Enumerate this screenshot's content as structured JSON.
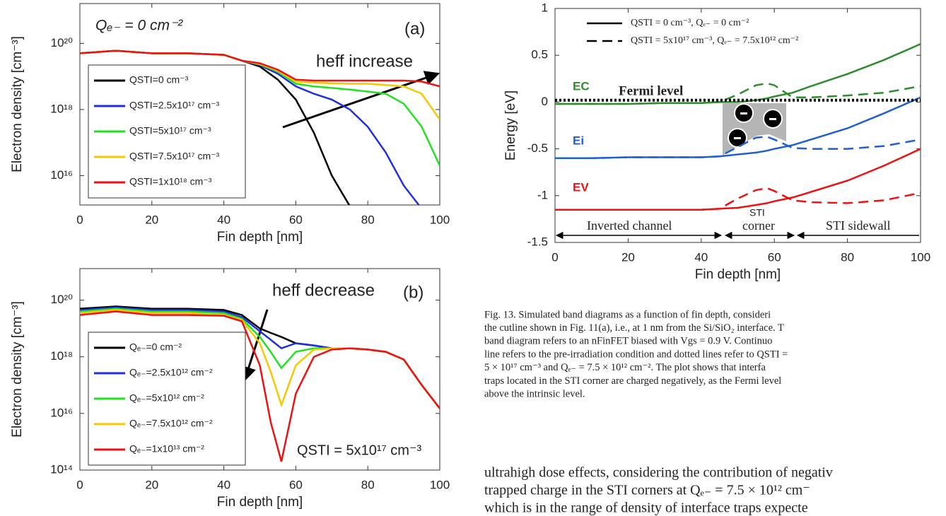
{
  "chart_data": [
    {
      "type": "line",
      "log_y": true,
      "annotations": [
        "Qₑ₋ = 0 cm⁻²",
        "(a)",
        "heff increase"
      ],
      "xlabel": "Fin depth [nm]",
      "ylabel": "Electron density [cm⁻³]",
      "xlim": [
        0,
        100
      ],
      "xticks": [
        0,
        20,
        40,
        60,
        80,
        100
      ],
      "ylim": [
        1300000000000000.0,
        1.6e+21
      ],
      "yticks": [
        {
          "value": 1e+16,
          "label": "10¹⁶"
        },
        {
          "value": 1e+18,
          "label": "10¹⁸"
        },
        {
          "value": 1e+20,
          "label": "10²⁰"
        }
      ],
      "x": [
        0,
        10,
        20,
        30,
        40,
        45,
        50,
        55,
        60,
        65,
        70,
        75,
        80,
        85,
        90,
        95,
        100
      ],
      "series": [
        {
          "name": "QSTI=0 cm⁻³",
          "color": "#000000",
          "values": [
            5e+19,
            6e+19,
            5e+19,
            5e+19,
            4.5e+19,
            3e+19,
            2e+19,
            8e+18,
            2e+18,
            2e+17,
            1e+16,
            1200000000000000.0,
            null,
            null,
            null,
            null,
            null
          ]
        },
        {
          "name": "QSTI=2.5x10¹⁷ cm⁻³",
          "color": "#1f2fe0",
          "values": [
            5e+19,
            6e+19,
            5e+19,
            5e+19,
            4.5e+19,
            3e+19,
            2.2e+19,
            1.2e+19,
            5e+18,
            3e+18,
            2e+18,
            1e+18,
            3e+17,
            5e+16,
            5000000000000000.0,
            1000000000000000.0,
            null
          ]
        },
        {
          "name": "QSTI=5x10¹⁷ cm⁻³",
          "color": "#22e022",
          "values": [
            5e+19,
            6e+19,
            5e+19,
            5e+19,
            4.5e+19,
            3e+19,
            2.3e+19,
            1.4e+19,
            6e+18,
            5e+18,
            4.5e+18,
            4e+18,
            3.5e+18,
            3e+18,
            1.5e+18,
            3e+17,
            2e+16
          ]
        },
        {
          "name": "QSTI=7.5x10¹⁷ cm⁻³",
          "color": "#f5c800",
          "values": [
            5e+19,
            6e+19,
            5e+19,
            5e+19,
            4.5e+19,
            3e+19,
            2.4e+19,
            1.5e+19,
            7e+18,
            6.5e+18,
            6.2e+18,
            6e+18,
            6e+18,
            5.5e+18,
            5e+18,
            3e+18,
            5e+17
          ]
        },
        {
          "name": "QSTI=1x10¹⁸ cm⁻³",
          "color": "#ee1111",
          "values": [
            5e+19,
            6e+19,
            5e+19,
            5e+19,
            4.5e+19,
            3e+19,
            2.5e+19,
            1.6e+19,
            8e+18,
            7.5e+18,
            7.5e+18,
            7.5e+18,
            7.5e+18,
            7.5e+18,
            7.5e+18,
            7e+18,
            5e+18
          ]
        }
      ]
    },
    {
      "type": "line",
      "log_y": true,
      "annotations": [
        "heff decrease",
        "(b)",
        "QSTI = 5x10¹⁷ cm⁻³"
      ],
      "xlabel": "Fin depth [nm]",
      "ylabel": "Electron density [cm⁻³]",
      "xlim": [
        0,
        100
      ],
      "xticks": [
        0,
        20,
        40,
        60,
        80,
        100
      ],
      "ylim": [
        100000000000000.0,
        1.3e+21
      ],
      "yticks": [
        {
          "value": 100000000000000.0,
          "label": "10¹⁴"
        },
        {
          "value": 1e+16,
          "label": "10¹⁶"
        },
        {
          "value": 1e+18,
          "label": "10¹⁸"
        },
        {
          "value": 1e+20,
          "label": "10²⁰"
        }
      ],
      "x": [
        0,
        10,
        20,
        30,
        40,
        45,
        50,
        53,
        56,
        60,
        65,
        70,
        75,
        80,
        85,
        90,
        95,
        100
      ],
      "series": [
        {
          "name": "Qₑ₋=0 cm⁻²",
          "color": "#000000",
          "values": [
            5e+19,
            6e+19,
            5e+19,
            5e+19,
            4.5e+19,
            3e+19,
            1e+19,
            7e+18,
            5e+18,
            3e+18,
            2.5e+18,
            2e+18,
            2e+18,
            1.8e+18,
            1.5e+18,
            8e+17,
            1e+17,
            1.5e+16
          ]
        },
        {
          "name": "Qₑ₋=2.5x10¹² cm⁻²",
          "color": "#1f2fe0",
          "values": [
            4.5e+19,
            5.5e+19,
            4.5e+19,
            4.5e+19,
            4e+19,
            2.5e+19,
            8e+18,
            4e+18,
            2e+18,
            3e+18,
            2.5e+18,
            2e+18,
            2e+18,
            1.8e+18,
            1.5e+18,
            8e+17,
            1e+17,
            1.5e+16
          ]
        },
        {
          "name": "Qₑ₋=5x10¹² cm⁻²",
          "color": "#22e022",
          "values": [
            4e+19,
            5e+19,
            4e+19,
            4e+19,
            3.5e+19,
            2.2e+19,
            5e+18,
            1.5e+18,
            4e+17,
            1.5e+18,
            2e+18,
            2e+18,
            2e+18,
            1.8e+18,
            1.5e+18,
            8e+17,
            1e+17,
            1.5e+16
          ]
        },
        {
          "name": "Qₑ₋=7.5x10¹² cm⁻²",
          "color": "#f5c800",
          "values": [
            3.5e+19,
            4.5e+19,
            3.5e+19,
            3.5e+19,
            3e+19,
            2e+19,
            3e+18,
            3e+17,
            2e+16,
            5e+17,
            1.8e+18,
            2e+18,
            2e+18,
            1.8e+18,
            1.5e+18,
            8e+17,
            1e+17,
            1.5e+16
          ]
        },
        {
          "name": "Qₑ₋=1x10¹³ cm⁻²",
          "color": "#ee1111",
          "values": [
            3e+19,
            4e+19,
            3e+19,
            3e+19,
            2.8e+19,
            1.8e+19,
            5e+17,
            5000000000000000.0,
            200000000000000.0,
            5e+16,
            1e+18,
            1.8e+18,
            2e+18,
            1.8e+18,
            1.5e+18,
            8e+17,
            1e+17,
            1.5e+16
          ]
        }
      ]
    },
    {
      "type": "line",
      "log_y": false,
      "legend": [
        {
          "label": "QSTI = 0 cm⁻³, Qₑ₋ = 0 cm⁻²",
          "dash": "solid"
        },
        {
          "label": "QSTI = 5x10¹⁷ cm⁻³, Qₑ₋ = 7.5x10¹² cm⁻²",
          "dash": "dashed"
        }
      ],
      "annotations": [
        "EC",
        "Fermi level",
        "Ei",
        "EV",
        "Inverted channel",
        "STI",
        "corner",
        "STI sidewall"
      ],
      "xlabel": "Fin depth [nm]",
      "ylabel": "Energy [eV]",
      "xlim": [
        0,
        100
      ],
      "xticks": [
        0,
        20,
        40,
        60,
        80,
        100
      ],
      "ylim": [
        -1.5,
        1
      ],
      "yticks": [
        -1.5,
        -1,
        -0.5,
        0,
        0.5,
        1
      ],
      "x": [
        0,
        10,
        20,
        30,
        40,
        45,
        50,
        55,
        58,
        60,
        65,
        70,
        80,
        90,
        100
      ],
      "series": [
        {
          "color": "#2e8b2e",
          "dash": "solid",
          "values": [
            -0.02,
            -0.02,
            -0.02,
            -0.01,
            -0.01,
            0,
            0,
            0.02,
            0.04,
            0.06,
            0.1,
            0.17,
            0.3,
            0.45,
            0.62
          ]
        },
        {
          "color": "#2e8b2e",
          "dash": "dashed",
          "values": [
            -0.02,
            -0.02,
            -0.02,
            -0.01,
            -0.01,
            0,
            0.08,
            0.18,
            0.2,
            0.18,
            0.05,
            0.05,
            0.07,
            0.1,
            0.17
          ]
        },
        {
          "color": "#1f5fd0",
          "dash": "solid",
          "values": [
            -0.6,
            -0.6,
            -0.59,
            -0.59,
            -0.59,
            -0.58,
            -0.56,
            -0.54,
            -0.52,
            -0.5,
            -0.46,
            -0.4,
            -0.28,
            -0.12,
            0.05
          ]
        },
        {
          "color": "#1f5fd0",
          "dash": "dashed",
          "values": [
            -0.6,
            -0.6,
            -0.59,
            -0.59,
            -0.59,
            -0.58,
            -0.48,
            -0.38,
            -0.37,
            -0.4,
            -0.49,
            -0.5,
            -0.5,
            -0.47,
            -0.4
          ]
        },
        {
          "color": "#ee1111",
          "dash": "solid",
          "values": [
            -1.15,
            -1.15,
            -1.15,
            -1.15,
            -1.15,
            -1.14,
            -1.13,
            -1.1,
            -1.08,
            -1.06,
            -1.02,
            -0.96,
            -0.84,
            -0.68,
            -0.5
          ]
        },
        {
          "color": "#ee1111",
          "dash": "dashed",
          "values": [
            -1.15,
            -1.15,
            -1.15,
            -1.15,
            -1.15,
            -1.14,
            -1.03,
            -0.94,
            -0.92,
            -0.95,
            -1.05,
            -1.07,
            -1.08,
            -1.05,
            -0.97
          ]
        },
        {
          "color": "#000000",
          "dash": "dotted",
          "values": [
            0.02,
            0.02,
            0.02,
            0.02,
            0.02,
            0.02,
            0.02,
            0.02,
            0.02,
            0.02,
            0.02,
            0.02,
            0.02,
            0.02,
            0.02
          ]
        }
      ]
    }
  ],
  "caption": [
    "Fig. 13.    Simulated band diagrams as a function of fin depth, consideri",
    "the cutline shown in Fig. 11(a), i.e., at 1 nm from the Si/SiO₂ interface. T",
    "band diagram refers to an nFinFET biased with Vgs = 0.9 V. Continuo",
    "line refers to the pre-irradiation condition and dotted lines refer to QSTI =",
    "5 × 10¹⁷ cm⁻³ and Qₑ₋ = 7.5 × 10¹² cm⁻². The plot shows that interfa",
    "traps located in the STI corner are charged negatively, as the Fermi level",
    "above the intrinsic level."
  ],
  "body": [
    "ultrahigh dose effects, considering the contribution of negativ",
    "trapped charge in the STI corners at Qₑ₋ = 7.5 × 10¹² cm⁻",
    "which is in the range of density of interface traps expecte"
  ]
}
